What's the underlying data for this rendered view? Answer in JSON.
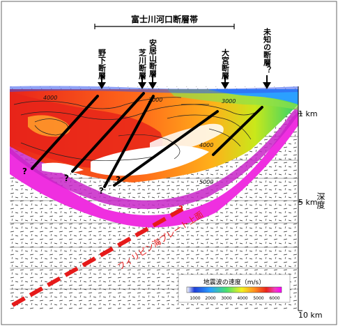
{
  "zone_label": "富士川河口断層帯",
  "faults": [
    {
      "id": "noshita",
      "label": "野下断層"
    },
    {
      "id": "shibakawa",
      "label": "芝川断層"
    },
    {
      "id": "anzaiyama",
      "label": "安居山断層"
    },
    {
      "id": "omiya",
      "label": "大宮断層"
    },
    {
      "id": "unknown",
      "label": "未知の断層？"
    }
  ],
  "question_mark": "?",
  "contour_labels": [
    "4000",
    "3000",
    "3000",
    "4000",
    "5000"
  ],
  "depth_axis": {
    "title": "深度",
    "ticks": [
      {
        "label": "1 km",
        "depth_km": 1
      },
      {
        "label": "5 km",
        "depth_km": 5
      },
      {
        "label": "10 km",
        "depth_km": 10
      }
    ]
  },
  "plate_label": "フィリピン海プレート上面",
  "legend": {
    "title": "地震波の速度（m/s）",
    "ticks": [
      "1000",
      "2000",
      "3000",
      "4000",
      "5000",
      "6000"
    ],
    "colors": [
      "#1f3fd8",
      "#2ba0ff",
      "#49e06e",
      "#f3f21f",
      "#ff8a1f",
      "#e8241a",
      "#ef3fbf",
      "#ff00ff"
    ]
  },
  "colors": {
    "fault_line": "#000000",
    "plate_line": "#e61a1a",
    "plate_text": "#e61a1a",
    "border": "#666666"
  }
}
